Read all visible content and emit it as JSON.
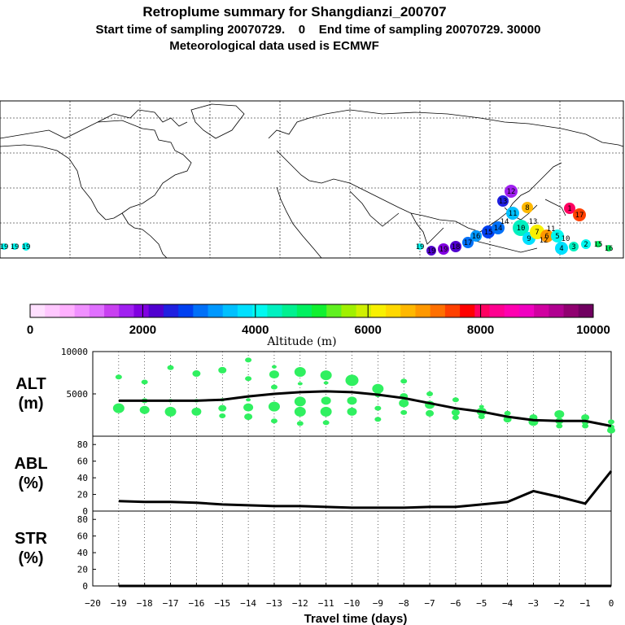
{
  "header": {
    "title": "Retroplume summary for Shangdianzi_200707",
    "sampling_line": "Start time of sampling 20070729.    0    End time of sampling 20070729. 30000",
    "met_line": "Meteorological data used is ECMWF"
  },
  "map": {
    "labels": [
      "19",
      "19",
      "19",
      "19",
      "19",
      "19",
      "18",
      "17",
      "16",
      "15",
      "14",
      "13",
      "12",
      "11",
      "10",
      "9",
      "8",
      "7",
      "6",
      "5",
      "4",
      "3",
      "2",
      "1",
      "17",
      "16",
      "15",
      "14",
      "13",
      "12",
      "11",
      "10"
    ],
    "colors": {
      "ocean": "#ffffff",
      "coast": "#000000",
      "grid": "#000000"
    }
  },
  "colorbar": {
    "tick_labels": [
      "0",
      "2000",
      "4000",
      "6000",
      "8000",
      "10000"
    ],
    "title": "Altitude (m)",
    "colors": [
      "#ffe0ff",
      "#ffc8ff",
      "#ffb0ff",
      "#f090ff",
      "#e070ff",
      "#c840f0",
      "#a020f0",
      "#8000e0",
      "#5000d0",
      "#2020e0",
      "#0040f0",
      "#0070f8",
      "#0098ff",
      "#00c0ff",
      "#00e0ff",
      "#00f8f0",
      "#00f0c0",
      "#00f090",
      "#00f060",
      "#10f030",
      "#60f020",
      "#a0f000",
      "#d0f000",
      "#f8f000",
      "#ffd800",
      "#ffb800",
      "#ff9800",
      "#ff7000",
      "#ff4000",
      "#ff0000",
      "#ff0060",
      "#ff0090",
      "#ff00b0",
      "#f000c0",
      "#d000a0",
      "#b00090",
      "#900070",
      "#700060"
    ]
  },
  "chart_data": [
    {
      "name": "ALT",
      "type": "line+scatter",
      "ylabel": "ALT\n(m)",
      "ylabel_line1": "ALT",
      "ylabel_line2": "(m)",
      "ylim": [
        0,
        10000
      ],
      "yticks": [
        "5000",
        "10000"
      ],
      "x": [
        -19,
        -18,
        -17,
        -16,
        -15,
        -14,
        -13,
        -12,
        -11,
        -10,
        -9,
        -8,
        -7,
        -6,
        -5,
        -4,
        -3,
        -2,
        -1,
        0
      ],
      "mean_altitude": [
        4200,
        4200,
        4200,
        4200,
        4300,
        4700,
        5000,
        5200,
        5300,
        5200,
        4900,
        4500,
        3900,
        3300,
        2900,
        2300,
        1900,
        1800,
        1800,
        1200
      ],
      "clusters": [
        {
          "x": -19,
          "alt": [
            7000,
            3300,
            3300
          ],
          "size": [
            3,
            6,
            5
          ]
        },
        {
          "x": -18,
          "alt": [
            6400,
            4200,
            3100
          ],
          "size": [
            3,
            3,
            5
          ]
        },
        {
          "x": -17,
          "alt": [
            8100,
            4200,
            2900
          ],
          "size": [
            3,
            2,
            6
          ]
        },
        {
          "x": -16,
          "alt": [
            7400,
            4200,
            2900
          ],
          "size": [
            4,
            2,
            5
          ]
        },
        {
          "x": -15,
          "alt": [
            7800,
            4300,
            3300,
            2400
          ],
          "size": [
            4,
            2,
            4,
            3
          ]
        },
        {
          "x": -14,
          "alt": [
            9000,
            6800,
            4300,
            3400,
            2300
          ],
          "size": [
            3,
            3,
            2,
            5,
            4
          ]
        },
        {
          "x": -13,
          "alt": [
            8200,
            7300,
            5800,
            3500,
            1800
          ],
          "size": [
            2,
            5,
            3,
            6,
            3
          ]
        },
        {
          "x": -12,
          "alt": [
            7600,
            6200,
            4100,
            2900,
            1500
          ],
          "size": [
            6,
            2,
            6,
            6,
            3
          ]
        },
        {
          "x": -11,
          "alt": [
            7200,
            6300,
            4200,
            2900,
            1600
          ],
          "size": [
            6,
            2,
            5,
            6,
            3
          ]
        },
        {
          "x": -10,
          "alt": [
            6600,
            6300,
            4200,
            2900
          ],
          "size": [
            7,
            2,
            5,
            5
          ]
        },
        {
          "x": -9,
          "alt": [
            5600,
            4900,
            3300,
            2000
          ],
          "size": [
            6,
            3,
            3,
            3
          ]
        },
        {
          "x": -8,
          "alt": [
            6500,
            4700,
            3900,
            2800
          ],
          "size": [
            3,
            4,
            5,
            3
          ]
        },
        {
          "x": -7,
          "alt": [
            5000,
            3700,
            2700
          ],
          "size": [
            3,
            5,
            4
          ]
        },
        {
          "x": -6,
          "alt": [
            4300,
            2800,
            2200
          ],
          "size": [
            3,
            4,
            3
          ]
        },
        {
          "x": -5,
          "alt": [
            3500,
            2900,
            2300
          ],
          "size": [
            2,
            5,
            3
          ]
        },
        {
          "x": -4,
          "alt": [
            2700,
            2000
          ],
          "size": [
            3,
            4
          ]
        },
        {
          "x": -3,
          "alt": [
            2200,
            1700
          ],
          "size": [
            4,
            5
          ]
        },
        {
          "x": -2,
          "alt": [
            2600,
            1800,
            1200
          ],
          "size": [
            5,
            4,
            3
          ]
        },
        {
          "x": -1,
          "alt": [
            2200,
            1600,
            1200
          ],
          "size": [
            4,
            3,
            3
          ]
        },
        {
          "x": 0,
          "alt": [
            1700,
            1100,
            700
          ],
          "size": [
            3,
            3,
            4
          ]
        }
      ]
    },
    {
      "name": "ABL",
      "type": "line",
      "ylabel_line1": "ABL",
      "ylabel_line2": "(%)",
      "ylim": [
        0,
        90
      ],
      "yticks": [
        "0",
        "20",
        "40",
        "60",
        "80"
      ],
      "x": [
        -19,
        -18,
        -17,
        -16,
        -15,
        -14,
        -13,
        -12,
        -11,
        -10,
        -9,
        -8,
        -7,
        -6,
        -5,
        -4,
        -3,
        -2,
        -1,
        0
      ],
      "values": [
        12,
        11,
        11,
        10,
        8,
        7,
        6,
        6,
        5,
        4,
        4,
        4,
        5,
        5,
        8,
        11,
        24,
        17,
        9,
        48
      ]
    },
    {
      "name": "STR",
      "type": "line",
      "ylabel_line1": "STR",
      "ylabel_line2": "(%)",
      "ylim": [
        0,
        90
      ],
      "yticks": [
        "0",
        "20",
        "40",
        "60",
        "80"
      ],
      "x": [
        -19,
        -18,
        -17,
        -16,
        -15,
        -14,
        -13,
        -12,
        -11,
        -10,
        -9,
        -8,
        -7,
        -6,
        -5,
        -4,
        -3,
        -2,
        -1,
        0
      ],
      "values": [
        0,
        0,
        0,
        0,
        0,
        0,
        0,
        0,
        0,
        0,
        0,
        0,
        0,
        0,
        0,
        0,
        0,
        0,
        0,
        0
      ]
    }
  ],
  "xaxis": {
    "tick_labels": [
      "−20",
      "−19",
      "−18",
      "−17",
      "−16",
      "−15",
      "−14",
      "−13",
      "−12",
      "−11",
      "−10",
      "−9",
      "−8",
      "−7",
      "−6",
      "−5",
      "−4",
      "−3",
      "−2",
      "−1",
      "0"
    ],
    "xlabel": "Travel time (days)",
    "xlim": [
      -20,
      0
    ]
  },
  "scatter_color": "#30f060"
}
